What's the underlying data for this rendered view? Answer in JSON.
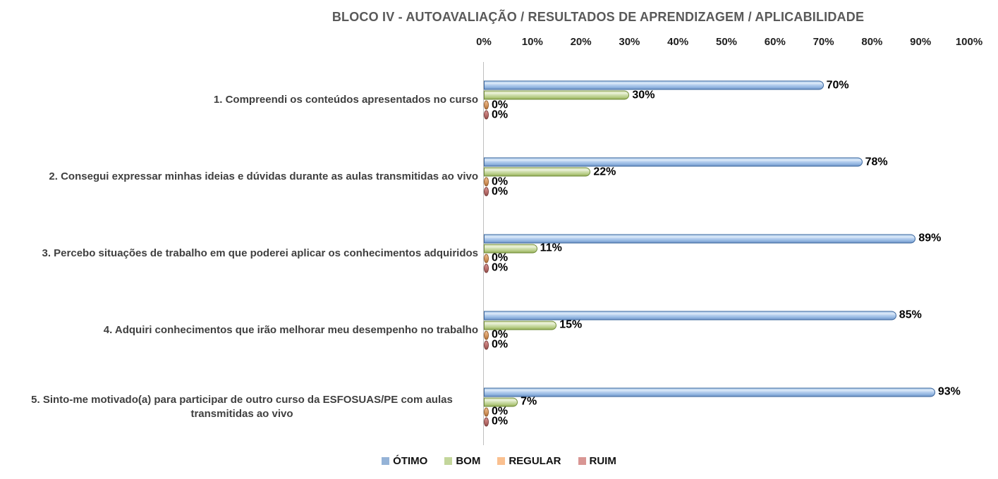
{
  "title": "BLOCO IV - AUTOAVALIAÇÃO / RESULTADOS DE APRENDIZAGEM / APLICABILIDADE",
  "chart_data": {
    "type": "bar",
    "orientation": "horizontal",
    "title": "BLOCO IV - AUTOAVALIAÇÃO / RESULTADOS DE APRENDIZAGEM / APLICABILIDADE",
    "categories": [
      "1. Compreendi os conteúdos apresentados no curso",
      "2. Consegui expressar minhas ideias e dúvidas durante as aulas transmitidas ao vivo",
      "3. Percebo situações de trabalho em que poderei aplicar os conhecimentos adquiridos",
      "4. Adquiri conhecimentos que irão melhorar meu desempenho no trabalho",
      "5. Sinto-me motivado(a) para participar de outro curso da ESFOSUAS/PE com aulas transmitidas ao vivo"
    ],
    "series": [
      {
        "name": "ÓTIMO",
        "color": "#95b3d7",
        "values": [
          70,
          78,
          89,
          85,
          93
        ]
      },
      {
        "name": "BOM",
        "color": "#c3d69b",
        "values": [
          30,
          22,
          11,
          15,
          7
        ]
      },
      {
        "name": "REGULAR",
        "color": "#fac090",
        "values": [
          0,
          0,
          0,
          0,
          0
        ]
      },
      {
        "name": "RUIM",
        "color": "#d99694",
        "values": [
          0,
          0,
          0,
          0,
          0
        ]
      }
    ],
    "value_axis": {
      "min": 0,
      "max": 100,
      "ticks": [
        "0%",
        "10%",
        "20%",
        "30%",
        "40%",
        "50%",
        "60%",
        "70%",
        "80%",
        "90%",
        "100%"
      ],
      "position": "top"
    },
    "data_label_format": "{value}%",
    "legend_position": "bottom",
    "grid": false
  }
}
